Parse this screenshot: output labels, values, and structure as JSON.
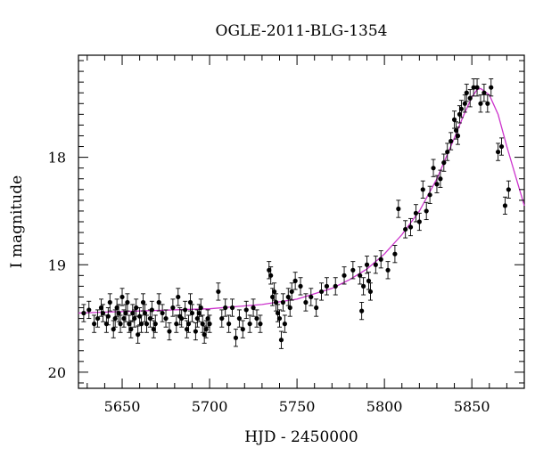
{
  "chart_data": {
    "type": "scatter",
    "title": "OGLE-2011-BLG-1354",
    "xlabel": "HJD - 2450000",
    "ylabel": "I magnitude",
    "xlim": [
      5625,
      5880
    ],
    "ylim": [
      20.15,
      17.05
    ],
    "y_inverted": true,
    "x_ticks": [
      5650,
      5700,
      5750,
      5800,
      5850
    ],
    "x_tick_labels": [
      "5650",
      "5700",
      "5750",
      "5800",
      "5850"
    ],
    "y_ticks": [
      18,
      19,
      20
    ],
    "y_tick_labels": [
      "18",
      "19",
      "20"
    ],
    "grid": false,
    "marker_color": "#000000",
    "model_color": "#cc33cc",
    "series": [
      {
        "kind": "points_with_error_bars",
        "x": [
          5628,
          5631,
          5634,
          5636,
          5638,
          5639,
          5641,
          5642,
          5643,
          5645,
          5646,
          5647,
          5648,
          5649,
          5650,
          5651,
          5652,
          5653,
          5654,
          5655,
          5656,
          5657,
          5658,
          5659,
          5660,
          5661,
          5662,
          5663,
          5664,
          5666,
          5667,
          5668,
          5669,
          5671,
          5673,
          5675,
          5677,
          5679,
          5681,
          5682,
          5683,
          5684,
          5686,
          5687,
          5688,
          5689,
          5690,
          5692,
          5693,
          5694,
          5695,
          5696,
          5697,
          5698,
          5699,
          5700,
          5705,
          5707,
          5709,
          5711,
          5713,
          5715,
          5717,
          5719,
          5721,
          5723,
          5725,
          5727,
          5729,
          5734,
          5735,
          5736,
          5737,
          5738,
          5739,
          5740,
          5741,
          5742,
          5743,
          5745,
          5746,
          5747,
          5749,
          5752,
          5755,
          5758,
          5761,
          5764,
          5767,
          5772,
          5777,
          5782,
          5786,
          5787,
          5788,
          5790,
          5791,
          5792,
          5795,
          5798,
          5802,
          5806,
          5808,
          5812,
          5815,
          5818,
          5820,
          5822,
          5824,
          5826,
          5828,
          5830,
          5832,
          5834,
          5836,
          5838,
          5840,
          5841,
          5842,
          5843,
          5844,
          5846,
          5847,
          5849,
          5851,
          5853,
          5855,
          5857,
          5859,
          5861,
          5865,
          5867,
          5869,
          5871
        ],
        "y": [
          19.45,
          19.42,
          19.55,
          19.5,
          19.4,
          19.45,
          19.55,
          19.48,
          19.35,
          19.6,
          19.5,
          19.4,
          19.45,
          19.55,
          19.3,
          19.5,
          19.45,
          19.35,
          19.55,
          19.6,
          19.45,
          19.5,
          19.4,
          19.65,
          19.48,
          19.55,
          19.35,
          19.45,
          19.55,
          19.5,
          19.42,
          19.6,
          19.55,
          19.35,
          19.45,
          19.5,
          19.62,
          19.4,
          19.55,
          19.3,
          19.48,
          19.5,
          19.42,
          19.6,
          19.55,
          19.35,
          19.45,
          19.62,
          19.5,
          19.45,
          19.4,
          19.55,
          19.65,
          19.6,
          19.5,
          19.55,
          19.25,
          19.5,
          19.4,
          19.55,
          19.4,
          19.68,
          19.5,
          19.6,
          19.42,
          19.55,
          19.4,
          19.5,
          19.55,
          19.05,
          19.1,
          19.3,
          19.25,
          19.35,
          19.45,
          19.5,
          19.7,
          19.35,
          19.55,
          19.3,
          19.4,
          19.25,
          19.15,
          19.2,
          19.35,
          19.3,
          19.4,
          19.25,
          19.2,
          19.2,
          19.1,
          19.05,
          19.1,
          19.43,
          19.2,
          19.0,
          19.15,
          19.25,
          19.0,
          18.95,
          19.05,
          18.9,
          18.48,
          18.67,
          18.65,
          18.52,
          18.6,
          18.3,
          18.5,
          18.35,
          18.1,
          18.25,
          18.2,
          18.05,
          17.95,
          17.85,
          17.65,
          17.75,
          17.8,
          17.6,
          17.55,
          17.5,
          17.4,
          17.45,
          17.35,
          17.35,
          17.5,
          17.4,
          17.5,
          17.35,
          17.95,
          17.9,
          18.45,
          18.3
        ],
        "error_bar": 0.08
      },
      {
        "kind": "model_curve",
        "x": [
          5625,
          5660,
          5700,
          5730,
          5750,
          5770,
          5780,
          5790,
          5800,
          5810,
          5820,
          5830,
          5840,
          5845,
          5850,
          5853,
          5855,
          5860,
          5865,
          5870,
          5880
        ],
        "y": [
          19.45,
          19.43,
          19.41,
          19.37,
          19.32,
          19.22,
          19.14,
          19.04,
          18.9,
          18.72,
          18.5,
          18.2,
          17.82,
          17.62,
          17.44,
          17.37,
          17.36,
          17.42,
          17.6,
          17.9,
          18.45
        ]
      }
    ]
  }
}
